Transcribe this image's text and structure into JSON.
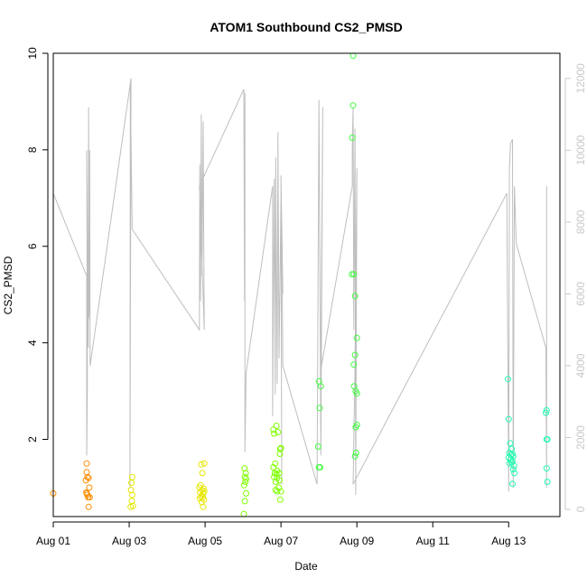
{
  "chart_data": {
    "type": "scatter",
    "title": "ATOM1 Southbound CS2_PMSD",
    "xlabel": "Date",
    "ylabel": "CS2_PMSD",
    "x_unit": "days since Aug 01 00:00",
    "xlim": [
      0,
      13.35
    ],
    "ylim": [
      0.4,
      10.0
    ],
    "x_ticks": [
      {
        "value": 0,
        "label": "Aug 01"
      },
      {
        "value": 2,
        "label": "Aug 03"
      },
      {
        "value": 4,
        "label": "Aug 05"
      },
      {
        "value": 6,
        "label": "Aug 07"
      },
      {
        "value": 8,
        "label": "Aug 09"
      },
      {
        "value": 10,
        "label": "Aug 11"
      },
      {
        "value": 12,
        "label": "Aug 13"
      }
    ],
    "y_ticks": [
      2,
      4,
      6,
      8,
      10
    ],
    "y2_ticks": [
      0,
      2000,
      4000,
      6000,
      8000,
      10000,
      12000
    ],
    "y2lim": [
      -200,
      12700
    ],
    "grid": false,
    "colors": {
      "secondary_line": "#bebebe",
      "secondary_axis": "#c8c8c8"
    },
    "series": [
      {
        "color": "#ff8c00",
        "points": [
          [
            0.0,
            0.88
          ],
          [
            0.88,
            1.5
          ],
          [
            0.88,
            1.32
          ],
          [
            0.9,
            1.22
          ],
          [
            0.86,
            1.15
          ],
          [
            0.93,
            1.2
          ],
          [
            0.95,
            1.0
          ],
          [
            0.87,
            0.9
          ],
          [
            0.9,
            0.85
          ],
          [
            0.92,
            0.8
          ],
          [
            0.96,
            0.8
          ],
          [
            0.88,
            0.88
          ],
          [
            0.93,
            0.6
          ]
        ]
      },
      {
        "color": "#e6e600",
        "points": [
          [
            2.08,
            1.22
          ],
          [
            2.06,
            1.1
          ],
          [
            2.05,
            0.95
          ],
          [
            2.08,
            0.85
          ],
          [
            2.07,
            0.72
          ],
          [
            2.1,
            0.62
          ],
          [
            2.04,
            0.6
          ],
          [
            3.9,
            1.48
          ],
          [
            3.98,
            1.5
          ],
          [
            3.93,
            1.3
          ],
          [
            3.88,
            1.05
          ],
          [
            3.96,
            0.98
          ],
          [
            3.85,
            1.0
          ],
          [
            3.92,
            0.95
          ],
          [
            3.98,
            0.92
          ],
          [
            3.87,
            0.9
          ],
          [
            3.95,
            0.88
          ],
          [
            3.9,
            0.82
          ],
          [
            3.94,
            0.8
          ],
          [
            3.86,
            0.78
          ],
          [
            3.97,
            0.75
          ],
          [
            3.91,
            0.7
          ],
          [
            3.95,
            0.6
          ]
        ]
      },
      {
        "color": "#80ff00",
        "points": [
          [
            5.04,
            1.4
          ],
          [
            5.07,
            1.3
          ],
          [
            5.05,
            1.22
          ],
          [
            5.08,
            1.18
          ],
          [
            5.06,
            1.12
          ],
          [
            5.03,
            1.05
          ],
          [
            5.08,
            0.88
          ],
          [
            5.05,
            0.72
          ],
          [
            5.02,
            0.45
          ],
          [
            5.8,
            2.2
          ],
          [
            5.88,
            2.28
          ],
          [
            5.82,
            2.12
          ],
          [
            5.92,
            2.15
          ],
          [
            5.85,
            1.5
          ],
          [
            5.8,
            1.42
          ],
          [
            5.9,
            1.35
          ],
          [
            5.84,
            1.3
          ],
          [
            5.88,
            1.28
          ],
          [
            5.95,
            1.3
          ],
          [
            5.82,
            1.22
          ],
          [
            5.9,
            1.2
          ],
          [
            5.96,
            1.15
          ],
          [
            5.86,
            1.12
          ],
          [
            5.98,
            1.8
          ],
          [
            6.0,
            1.82
          ],
          [
            5.97,
            1.7
          ],
          [
            5.94,
            1.0
          ],
          [
            5.86,
            0.95
          ],
          [
            5.9,
            0.92
          ],
          [
            6.0,
            0.92
          ],
          [
            5.98,
            0.75
          ]
        ]
      },
      {
        "color": "#40ff40",
        "points": [
          [
            7.0,
            3.2
          ],
          [
            7.05,
            3.1
          ],
          [
            7.02,
            2.65
          ],
          [
            6.98,
            1.85
          ],
          [
            7.0,
            1.42
          ],
          [
            7.03,
            1.42
          ],
          [
            7.9,
            9.95
          ],
          [
            7.9,
            8.92
          ],
          [
            7.88,
            8.25
          ],
          [
            7.87,
            5.42
          ],
          [
            7.92,
            5.42
          ],
          [
            7.95,
            4.97
          ],
          [
            8.0,
            4.1
          ],
          [
            7.95,
            3.75
          ],
          [
            7.92,
            3.55
          ],
          [
            7.93,
            3.1
          ],
          [
            7.97,
            3.0
          ],
          [
            8.0,
            2.95
          ],
          [
            8.0,
            2.3
          ],
          [
            7.97,
            2.25
          ],
          [
            7.98,
            1.72
          ],
          [
            7.95,
            1.65
          ]
        ]
      },
      {
        "color": "#20ffb0",
        "points": [
          [
            11.98,
            3.25
          ],
          [
            12.0,
            2.42
          ],
          [
            12.04,
            1.92
          ],
          [
            12.08,
            1.8
          ],
          [
            12.02,
            1.72
          ],
          [
            12.06,
            1.68
          ],
          [
            12.1,
            1.7
          ],
          [
            12.12,
            1.65
          ],
          [
            12.0,
            1.62
          ],
          [
            12.05,
            1.58
          ],
          [
            12.1,
            1.55
          ],
          [
            12.08,
            1.52
          ],
          [
            12.02,
            1.5
          ],
          [
            12.14,
            1.45
          ],
          [
            12.12,
            1.38
          ],
          [
            12.15,
            1.3
          ],
          [
            12.1,
            1.08
          ],
          [
            13.0,
            2.6
          ],
          [
            12.98,
            2.55
          ],
          [
            13.0,
            2.0
          ],
          [
            13.02,
            2.0
          ],
          [
            13.0,
            1.4
          ],
          [
            13.02,
            1.12
          ]
        ]
      }
    ],
    "secondary_series": {
      "axis": "right",
      "type": "line",
      "points": [
        [
          0.0,
          8800
        ],
        [
          0.88,
          6500
        ],
        [
          0.88,
          1500
        ],
        [
          0.9,
          3500
        ],
        [
          0.88,
          10000
        ],
        [
          0.92,
          4500
        ],
        [
          0.93,
          11200
        ],
        [
          0.95,
          5500
        ],
        [
          0.93,
          5300
        ],
        [
          0.96,
          10000
        ],
        [
          0.97,
          4000
        ],
        [
          2.05,
          12000
        ],
        [
          2.02,
          600
        ],
        [
          2.03,
          11800
        ],
        [
          2.08,
          7800
        ],
        [
          3.85,
          5000
        ],
        [
          3.86,
          9600
        ],
        [
          3.88,
          5800
        ],
        [
          3.9,
          11000
        ],
        [
          3.92,
          6500
        ],
        [
          3.95,
          10800
        ],
        [
          3.96,
          8400
        ],
        [
          3.98,
          5000
        ],
        [
          3.85,
          9000
        ],
        [
          5.02,
          11700
        ],
        [
          5.04,
          5800
        ],
        [
          5.05,
          11600
        ],
        [
          5.05,
          1600
        ],
        [
          5.08,
          3800
        ],
        [
          5.78,
          9000
        ],
        [
          5.78,
          2600
        ],
        [
          5.82,
          9200
        ],
        [
          5.85,
          3200
        ],
        [
          5.86,
          9800
        ],
        [
          5.9,
          3500
        ],
        [
          5.92,
          10500
        ],
        [
          5.95,
          4200
        ],
        [
          6.0,
          8600
        ],
        [
          6.02,
          700
        ],
        [
          6.0,
          9300
        ],
        [
          6.05,
          6000
        ],
        [
          6.02,
          8000
        ],
        [
          6.05,
          4000
        ],
        [
          6.95,
          700
        ],
        [
          7.0,
          11400
        ],
        [
          7.05,
          1500
        ],
        [
          7.1,
          11200
        ],
        [
          7.05,
          3900
        ],
        [
          7.88,
          9000
        ],
        [
          7.88,
          10000
        ],
        [
          7.9,
          11200
        ],
        [
          7.92,
          5000
        ],
        [
          7.95,
          10600
        ],
        [
          7.97,
          400
        ],
        [
          8.0,
          9500
        ],
        [
          7.95,
          4000
        ],
        [
          7.9,
          700
        ],
        [
          11.95,
          8800
        ],
        [
          12.0,
          500
        ],
        [
          12.02,
          9500
        ],
        [
          12.05,
          10200
        ],
        [
          12.1,
          10300
        ],
        [
          12.12,
          600
        ],
        [
          12.15,
          9000
        ],
        [
          12.2,
          7400
        ],
        [
          12.98,
          4500
        ],
        [
          13.0,
          600
        ],
        [
          13.0,
          9000
        ]
      ]
    }
  }
}
